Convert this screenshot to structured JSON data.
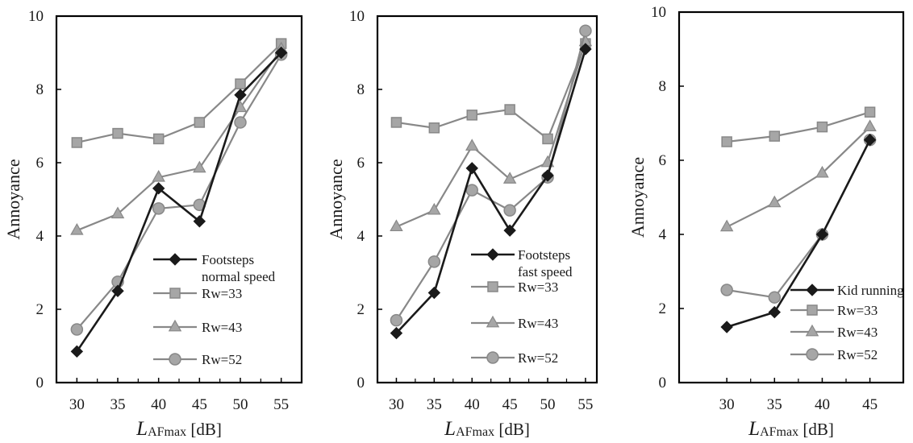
{
  "chart_data": [
    {
      "type": "line",
      "title": "",
      "xlabel": {
        "main": "L",
        "sub": "AFmax",
        "unit": " [dB]"
      },
      "ylabel": "Annoyance",
      "xlim": [
        27.5,
        57.5
      ],
      "ylim": [
        0,
        10
      ],
      "xticks": [
        "30",
        "35",
        "40",
        "45",
        "50",
        "55"
      ],
      "yticks": [
        "0",
        "2",
        "4",
        "6",
        "8",
        "10"
      ],
      "grid": false,
      "legend_position": "bottom-right",
      "series": [
        {
          "name": [
            "Footsteps",
            "normal speed"
          ],
          "color": "#1a1a1a",
          "marker": "diamond",
          "x": [
            30,
            35,
            40,
            45,
            50,
            55
          ],
          "y": [
            0.85,
            2.5,
            5.3,
            4.4,
            7.85,
            9.0
          ]
        },
        {
          "name": "Rw=33",
          "color": "#888888",
          "marker": "square",
          "x": [
            30,
            35,
            40,
            45,
            50,
            55
          ],
          "y": [
            6.55,
            6.8,
            6.65,
            7.1,
            8.15,
            9.25
          ]
        },
        {
          "name": "Rw=43",
          "color": "#888888",
          "marker": "triangle",
          "x": [
            30,
            35,
            40,
            45,
            50,
            55
          ],
          "y": [
            4.15,
            4.6,
            5.6,
            5.85,
            7.5,
            9.1
          ]
        },
        {
          "name": "Rw=52",
          "color": "#888888",
          "marker": "circle",
          "x": [
            30,
            35,
            40,
            45,
            50,
            55
          ],
          "y": [
            1.45,
            2.75,
            4.75,
            4.85,
            7.1,
            8.95
          ]
        }
      ]
    },
    {
      "type": "line",
      "title": "",
      "xlabel": {
        "main": "L",
        "sub": "AFmax",
        "unit": " [dB]"
      },
      "ylabel": "Annoyance",
      "xlim": [
        27.5,
        56.5
      ],
      "ylim": [
        0,
        10
      ],
      "xticks": [
        "30",
        "35",
        "40",
        "45",
        "50",
        "55"
      ],
      "yticks": [
        "0",
        "2",
        "4",
        "6",
        "8",
        "10"
      ],
      "grid": false,
      "legend_position": "bottom-right",
      "series": [
        {
          "name": [
            "Footsteps",
            "fast speed"
          ],
          "color": "#1a1a1a",
          "marker": "diamond",
          "x": [
            30,
            35,
            40,
            45,
            50,
            55
          ],
          "y": [
            1.35,
            2.45,
            5.85,
            4.15,
            5.65,
            9.1
          ]
        },
        {
          "name": "Rw=33",
          "color": "#888888",
          "marker": "square",
          "x": [
            30,
            35,
            40,
            45,
            50,
            55
          ],
          "y": [
            7.1,
            6.95,
            7.3,
            7.45,
            6.65,
            9.25
          ]
        },
        {
          "name": "Rw=43",
          "color": "#888888",
          "marker": "triangle",
          "x": [
            30,
            35,
            40,
            45,
            50,
            55
          ],
          "y": [
            4.25,
            4.7,
            6.45,
            5.55,
            6.0,
            9.3
          ]
        },
        {
          "name": "Rw=52",
          "color": "#888888",
          "marker": "circle",
          "x": [
            30,
            35,
            40,
            45,
            50,
            55
          ],
          "y": [
            1.7,
            3.3,
            5.25,
            4.7,
            5.6,
            9.6
          ]
        }
      ]
    },
    {
      "type": "line",
      "title": "",
      "xlabel": {
        "main": "L",
        "sub": "AFmax",
        "unit": " [dB]"
      },
      "ylabel": "Annoyance",
      "xlim": [
        25,
        48.5
      ],
      "ylim": [
        0,
        10
      ],
      "xticks": [
        "30",
        "35",
        "40",
        "45"
      ],
      "yticks": [
        "0",
        "2",
        "4",
        "6",
        "8",
        "10"
      ],
      "grid": false,
      "legend_position": "bottom-right",
      "series": [
        {
          "name": "Kid running",
          "color": "#1a1a1a",
          "marker": "diamond",
          "x": [
            30,
            35,
            40,
            45
          ],
          "y": [
            1.5,
            1.9,
            4.0,
            6.55
          ]
        },
        {
          "name": "Rw=33",
          "color": "#888888",
          "marker": "square",
          "x": [
            30,
            35,
            40,
            45
          ],
          "y": [
            6.5,
            6.65,
            6.9,
            7.3
          ]
        },
        {
          "name": "Rw=43",
          "color": "#888888",
          "marker": "triangle",
          "x": [
            30,
            35,
            40,
            45
          ],
          "y": [
            4.2,
            4.85,
            5.65,
            6.9
          ]
        },
        {
          "name": "Rw=52",
          "color": "#888888",
          "marker": "circle",
          "x": [
            30,
            35,
            40,
            45
          ],
          "y": [
            2.5,
            2.3,
            4.0,
            6.55
          ]
        }
      ]
    }
  ]
}
